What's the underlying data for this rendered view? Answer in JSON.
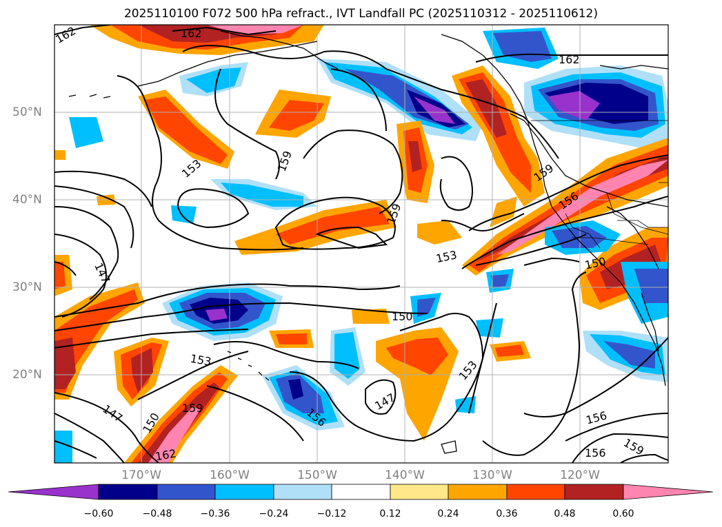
{
  "title": "2025110100 F072 500 hPa refract., IVT Landfall PC (2025110312 - 2025110612)",
  "lat_labels": [
    "50°N",
    "40°N",
    "30°N",
    "20°N"
  ],
  "lon_labels": [
    "170°W",
    "160°W",
    "150°W",
    "140°W",
    "130°W",
    "120°W"
  ],
  "contour_labels": [
    "162",
    "162",
    "162",
    "159",
    "153",
    "159",
    "159",
    "156",
    "153",
    "150",
    "147",
    "150",
    "153",
    "159",
    "150",
    "162",
    "147",
    "156",
    "153",
    "147",
    "156",
    "156",
    "159"
  ],
  "colorbar": {
    "ticks": [
      "−0.60",
      "−0.48",
      "−0.36",
      "−0.24",
      "−0.12",
      "0.12",
      "0.24",
      "0.36",
      "0.48",
      "0.60"
    ],
    "colors": [
      "#9932cc",
      "#00008b",
      "#3355cc",
      "#00bfff",
      "#b0e0f8",
      "#ffffff",
      "#ffe78a",
      "#ffa500",
      "#ff4500",
      "#b22222",
      "#ff85b0"
    ]
  }
}
